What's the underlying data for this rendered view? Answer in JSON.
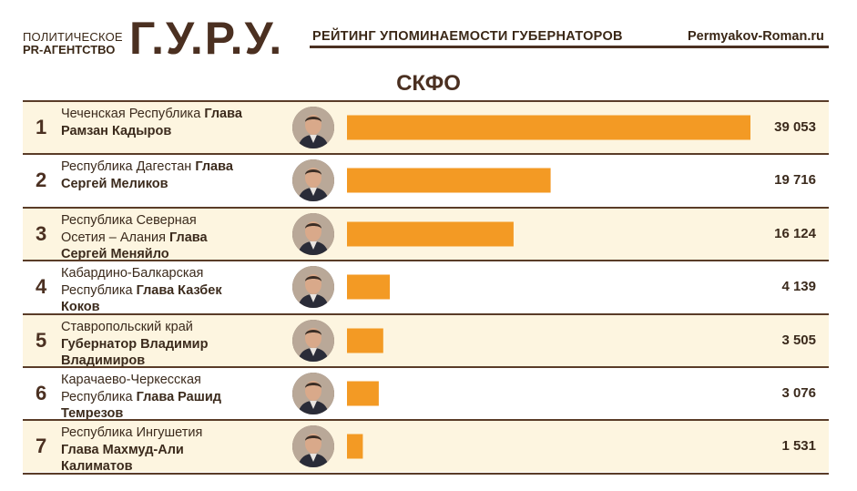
{
  "header": {
    "agency_line1": "ПОЛИТИЧЕСКОЕ",
    "agency_line2": "PR-АГЕНТСТВО",
    "logo": "Г.У.Р.У.",
    "subtitle": "РЕЙТИНГ УПОМИНАЕМОСТИ ГУБЕРНАТОРОВ",
    "site": "Permyakov-Roman.ru"
  },
  "colors": {
    "bar": "#f39a24",
    "text": "#3b2a1c",
    "row_alt": "#fdf5e0",
    "rule": "#5a3c28"
  },
  "chart_data": {
    "type": "bar",
    "title": "СКФО",
    "orientation": "horizontal",
    "rows": [
      {
        "rank": "1",
        "region": "Чеченская Республика",
        "governor": "Глава Рамзан Кадыров",
        "value": 39053,
        "label": "39 053"
      },
      {
        "rank": "2",
        "region": "Республика Дагестан",
        "governor": "Глава Сергей Меликов",
        "value": 19716,
        "label": "19 716"
      },
      {
        "rank": "3",
        "region": "Республика Северная Осетия – Алания",
        "governor": "Глава Сергей Меняйло",
        "value": 16124,
        "label": "16 124"
      },
      {
        "rank": "4",
        "region": "Кабардино-Балкарская Республика",
        "governor": "Глава Казбек Коков",
        "value": 4139,
        "label": "4 139"
      },
      {
        "rank": "5",
        "region": "Ставропольский край",
        "governor": "Губернатор Владимир Владимиров",
        "value": 3505,
        "label": "3 505"
      },
      {
        "rank": "6",
        "region": "Карачаево-Черкесская Республика",
        "governor": "Глава Рашид Темрезов",
        "value": 3076,
        "label": "3 076"
      },
      {
        "rank": "7",
        "region": "Республика Ингушетия",
        "governor": "Глава Махмуд-Али Калиматов",
        "value": 1531,
        "label": "1 531"
      }
    ],
    "xlim": [
      0,
      39053
    ]
  }
}
